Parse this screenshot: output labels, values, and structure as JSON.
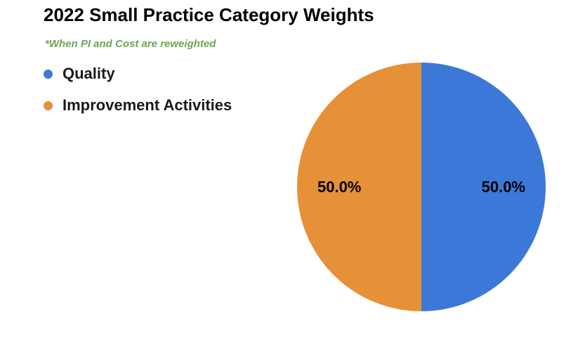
{
  "chart_data": {
    "type": "pie",
    "title": "2022 Small Practice Category Weights",
    "subtitle": "*When PI and Cost are reweighted",
    "legend_position": "top-left",
    "categories": [
      "Quality",
      "Improvement Activities"
    ],
    "values": [
      50.0,
      50.0
    ],
    "data_labels": [
      "50.0%",
      "50.0%"
    ],
    "colors": [
      "#3c78d8",
      "#e69138"
    ],
    "subtitle_color": "#6aa84f",
    "start_angle_deg": 0,
    "direction": "clockwise"
  }
}
